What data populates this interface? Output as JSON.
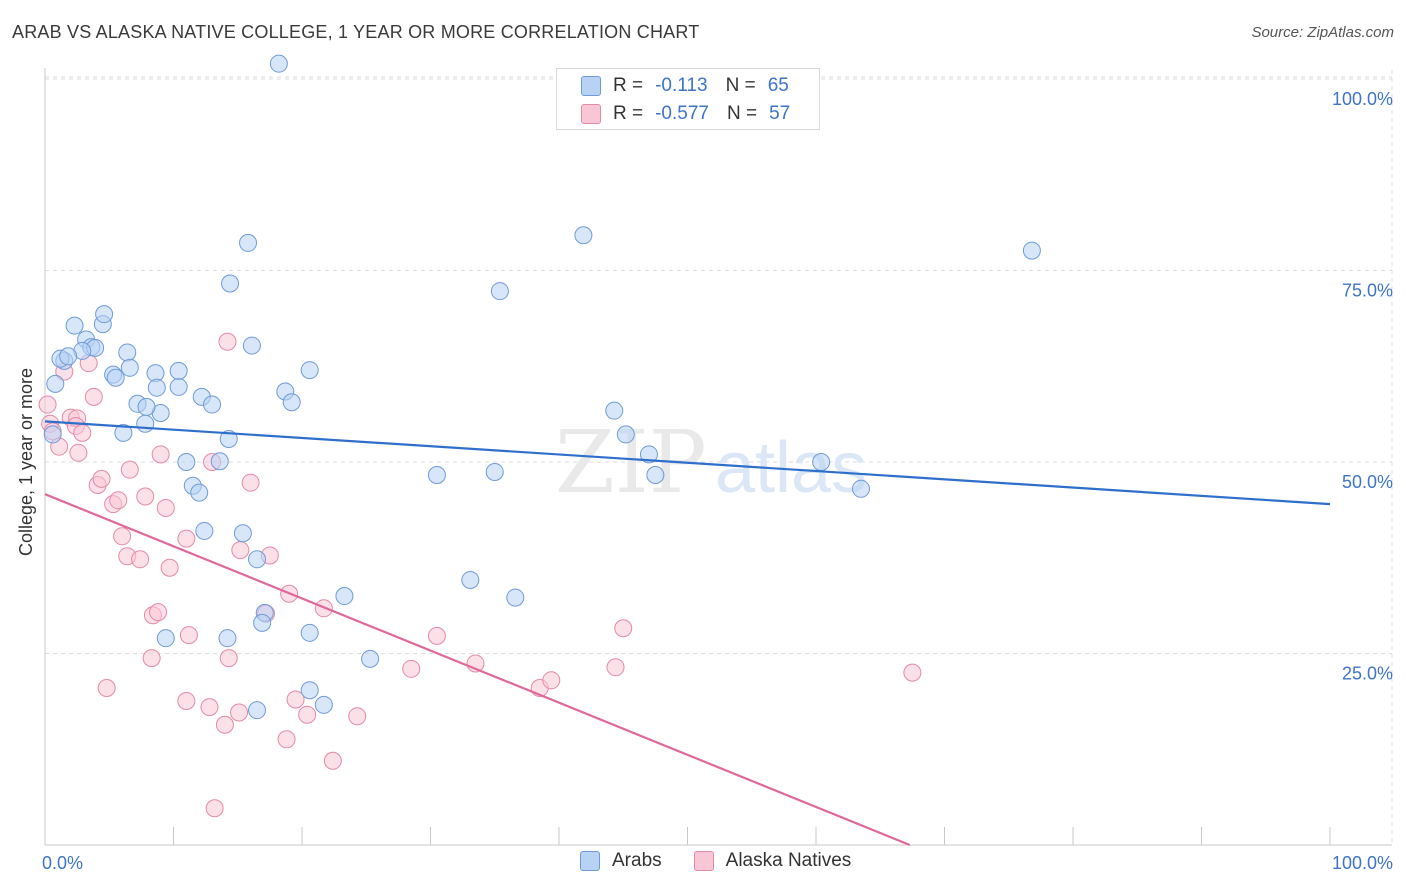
{
  "header": {
    "title": "ARAB VS ALASKA NATIVE COLLEGE, 1 YEAR OR MORE CORRELATION CHART",
    "source": "Source: ZipAtlas.com"
  },
  "watermark": {
    "zip": "ZIP",
    "atlas": "atlas"
  },
  "legend": {
    "rows": [
      {
        "r_label": "R =",
        "r_value": "-0.113",
        "n_label": "N =",
        "n_value": "65"
      },
      {
        "r_label": "R =",
        "r_value": "-0.577",
        "n_label": "N =",
        "n_value": "57"
      }
    ]
  },
  "colors": {
    "arabs_fill": "#b8d2f4",
    "arabs_stroke": "#6e9bd8",
    "arabs_line": "#2f6fcc",
    "natives_fill": "#f9c6d6",
    "natives_stroke": "#e48aa8",
    "natives_line": "#e0689a",
    "grid": "#dcdcdc",
    "axis_text": "#3d74c9"
  },
  "chart_data": {
    "type": "scatter",
    "title": "ARAB VS ALASKA NATIVE COLLEGE, 1 YEAR OR MORE CORRELATION CHART",
    "xlabel": "",
    "ylabel": "College, 1 year or more",
    "xlim": [
      0,
      100
    ],
    "ylim": [
      0,
      100
    ],
    "x_tick_labels": [
      "0.0%",
      "100.0%"
    ],
    "y_ticks": [
      {
        "value": 100,
        "label": "100.0%"
      },
      {
        "value": 75,
        "label": "75.0%"
      },
      {
        "value": 50,
        "label": "50.0%"
      },
      {
        "value": 25,
        "label": "25.0%"
      }
    ],
    "series": [
      {
        "name": "Arabs",
        "r": -0.113,
        "n": 65,
        "trend": {
          "x": [
            0,
            100
          ],
          "y": [
            55.3,
            44.5
          ]
        },
        "points": [
          [
            18.2,
            102
          ],
          [
            1.5,
            63.2
          ],
          [
            1.2,
            63.5
          ],
          [
            2.3,
            67.8
          ],
          [
            3.2,
            66.0
          ],
          [
            3.6,
            65.0
          ],
          [
            3.9,
            64.9
          ],
          [
            2.9,
            64.5
          ],
          [
            1.8,
            63.8
          ],
          [
            4.5,
            68.0
          ],
          [
            4.6,
            69.3
          ],
          [
            6.4,
            64.3
          ],
          [
            5.3,
            61.4
          ],
          [
            5.5,
            61.0
          ],
          [
            6.6,
            62.3
          ],
          [
            8.6,
            61.6
          ],
          [
            8.7,
            59.7
          ],
          [
            10.4,
            59.8
          ],
          [
            10.4,
            61.9
          ],
          [
            9.0,
            56.4
          ],
          [
            7.2,
            57.6
          ],
          [
            7.9,
            57.2
          ],
          [
            7.8,
            55.0
          ],
          [
            6.1,
            53.8
          ],
          [
            12.2,
            58.5
          ],
          [
            13.0,
            57.5
          ],
          [
            14.4,
            73.3
          ],
          [
            15.8,
            78.6
          ],
          [
            16.1,
            65.2
          ],
          [
            18.7,
            59.2
          ],
          [
            19.2,
            57.8
          ],
          [
            20.6,
            62.0
          ],
          [
            14.3,
            53.0
          ],
          [
            11.0,
            50.0
          ],
          [
            13.6,
            50.1
          ],
          [
            11.5,
            46.9
          ],
          [
            12.0,
            46.0
          ],
          [
            12.4,
            41.0
          ],
          [
            15.4,
            40.7
          ],
          [
            16.5,
            37.3
          ],
          [
            17.1,
            30.3
          ],
          [
            16.9,
            29.0
          ],
          [
            9.4,
            27.0
          ],
          [
            14.2,
            27.0
          ],
          [
            20.6,
            27.7
          ],
          [
            23.3,
            32.5
          ],
          [
            25.3,
            24.3
          ],
          [
            20.6,
            20.2
          ],
          [
            21.7,
            18.3
          ],
          [
            16.5,
            17.6
          ],
          [
            30.5,
            48.3
          ],
          [
            33.1,
            34.6
          ],
          [
            35.0,
            48.7
          ],
          [
            36.6,
            32.3
          ],
          [
            35.4,
            72.3
          ],
          [
            41.9,
            79.6
          ],
          [
            44.3,
            56.7
          ],
          [
            45.2,
            53.6
          ],
          [
            47.0,
            51.0
          ],
          [
            47.5,
            48.3
          ],
          [
            60.4,
            50.0
          ],
          [
            63.5,
            46.5
          ],
          [
            76.8,
            77.6
          ],
          [
            0.8,
            60.2
          ],
          [
            0.6,
            53.6
          ]
        ]
      },
      {
        "name": "Alaska Natives",
        "r": -0.577,
        "n": 57,
        "trend": {
          "x": [
            0,
            67.3
          ],
          "y": [
            45.8,
            0
          ]
        },
        "points": [
          [
            0.2,
            57.5
          ],
          [
            0.4,
            55.0
          ],
          [
            0.6,
            54.0
          ],
          [
            1.1,
            52.0
          ],
          [
            1.5,
            61.8
          ],
          [
            2.0,
            55.8
          ],
          [
            2.5,
            55.7
          ],
          [
            2.4,
            54.7
          ],
          [
            2.9,
            53.8
          ],
          [
            2.6,
            51.2
          ],
          [
            3.4,
            62.9
          ],
          [
            3.8,
            58.5
          ],
          [
            4.1,
            47.0
          ],
          [
            4.4,
            47.8
          ],
          [
            5.3,
            44.5
          ],
          [
            5.7,
            45.0
          ],
          [
            6.6,
            49.0
          ],
          [
            6.0,
            40.3
          ],
          [
            6.4,
            37.7
          ],
          [
            7.4,
            37.3
          ],
          [
            7.8,
            45.5
          ],
          [
            9.0,
            51.0
          ],
          [
            9.4,
            44.0
          ],
          [
            9.7,
            36.2
          ],
          [
            8.4,
            30.0
          ],
          [
            8.8,
            30.4
          ],
          [
            8.3,
            24.4
          ],
          [
            4.8,
            20.5
          ],
          [
            11.0,
            40.0
          ],
          [
            11.2,
            27.4
          ],
          [
            11.0,
            18.8
          ],
          [
            12.8,
            18.0
          ],
          [
            13.0,
            50.0
          ],
          [
            14.2,
            65.7
          ],
          [
            16.0,
            47.3
          ],
          [
            14.3,
            24.4
          ],
          [
            15.1,
            17.3
          ],
          [
            14.0,
            15.7
          ],
          [
            15.2,
            38.5
          ],
          [
            17.5,
            37.8
          ],
          [
            17.2,
            30.2
          ],
          [
            19.0,
            32.8
          ],
          [
            21.7,
            30.9
          ],
          [
            19.5,
            19.0
          ],
          [
            20.4,
            17.0
          ],
          [
            18.8,
            13.8
          ],
          [
            22.4,
            11.0
          ],
          [
            24.3,
            16.8
          ],
          [
            13.2,
            4.8
          ],
          [
            28.5,
            23.0
          ],
          [
            30.5,
            27.3
          ],
          [
            33.5,
            23.7
          ],
          [
            38.5,
            20.5
          ],
          [
            39.4,
            21.5
          ],
          [
            44.4,
            23.2
          ],
          [
            45.0,
            28.3
          ],
          [
            67.5,
            22.5
          ]
        ]
      }
    ]
  },
  "bottom_legend": {
    "items": [
      "Arabs",
      "Alaska Natives"
    ]
  }
}
